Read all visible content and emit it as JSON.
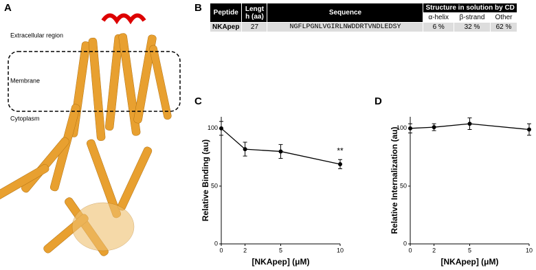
{
  "panel_labels": [
    "A",
    "B",
    "C",
    "D"
  ],
  "structure": {
    "regions": [
      "Extracellular region",
      "Membrane",
      "Cytoplasm"
    ]
  },
  "table": {
    "header": [
      "Peptide",
      "Length (aa)",
      "Sequence",
      "Structure in solution by CD"
    ],
    "subheader": [
      "α-helix",
      "β-strand",
      "Other"
    ],
    "rows": [
      [
        "NKApep",
        "27",
        "NGFLPGNLVGIRLNWDDRTVNDLEDSY",
        "6 %",
        "32 %",
        "62 %"
      ]
    ]
  },
  "chart_data": [
    {
      "type": "line",
      "xlabel": "[NKApep] (μM)",
      "ylabel": "Relative Binding (au)",
      "x": [
        0,
        2,
        5,
        10
      ],
      "values": [
        100,
        82,
        80,
        69
      ],
      "errors": [
        6,
        6,
        6,
        4
      ],
      "color": "#000000",
      "xlim": [
        0,
        10
      ],
      "xticks": [
        0,
        2,
        5,
        10
      ],
      "ylim": [
        0,
        110
      ],
      "yticks": [
        0,
        50,
        100
      ],
      "annotations": [
        {
          "text": "**",
          "x": 10,
          "y": 80
        }
      ]
    },
    {
      "type": "line",
      "xlabel": "[NKApep] (μM)",
      "ylabel": "Relative Internalization (au)",
      "x": [
        0,
        2,
        5,
        10
      ],
      "values": [
        100,
        101,
        104,
        99
      ],
      "errors": [
        4,
        3,
        5,
        5
      ],
      "color": "#000000",
      "xlim": [
        0,
        10
      ],
      "xticks": [
        0,
        2,
        5,
        10
      ],
      "ylim": [
        0,
        110
      ],
      "yticks": [
        0,
        50,
        100
      ]
    }
  ]
}
